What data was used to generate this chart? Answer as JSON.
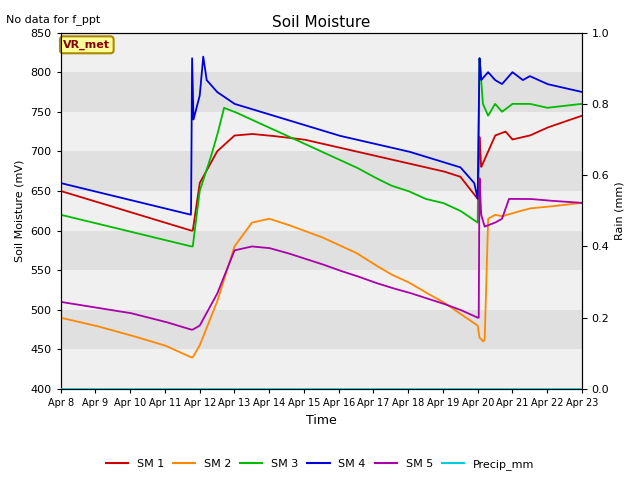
{
  "title": "Soil Moisture",
  "subtitle": "No data for f_ppt",
  "ylabel_left": "Soil Moisture (mV)",
  "ylabel_right": "Rain (mm)",
  "xlabel": "Time",
  "ylim_left": [
    400,
    850
  ],
  "ylim_right": [
    0.0,
    1.0
  ],
  "yticks_left": [
    400,
    450,
    500,
    550,
    600,
    650,
    700,
    750,
    800,
    850
  ],
  "yticks_right": [
    0.0,
    0.2,
    0.4,
    0.6,
    0.8,
    1.0
  ],
  "xtick_labels": [
    "Apr 8",
    "Apr 9",
    "Apr 10",
    "Apr 11",
    "Apr 12",
    "Apr 13",
    "Apr 14",
    "Apr 15",
    "Apr 16",
    "Apr 17",
    "Apr 18",
    "Apr 19",
    "Apr 20",
    "Apr 21",
    "Apr 22",
    "Apr 23"
  ],
  "legend_labels": [
    "SM 1",
    "SM 2",
    "SM 3",
    "SM 4",
    "SM 5",
    "Precip_mm"
  ],
  "legend_colors": [
    "#cc0000",
    "#ff8800",
    "#00bb00",
    "#0000dd",
    "#aa00aa",
    "#00ccdd"
  ],
  "fig_bg": "#ffffff",
  "ax_bg": "#e8e8e8",
  "grid_color": "#ffffff",
  "vr_met_text": "VR_met",
  "vr_met_text_color": "#880000",
  "vr_met_box_color": "#ffff99",
  "vr_met_edge_color": "#aa8800"
}
